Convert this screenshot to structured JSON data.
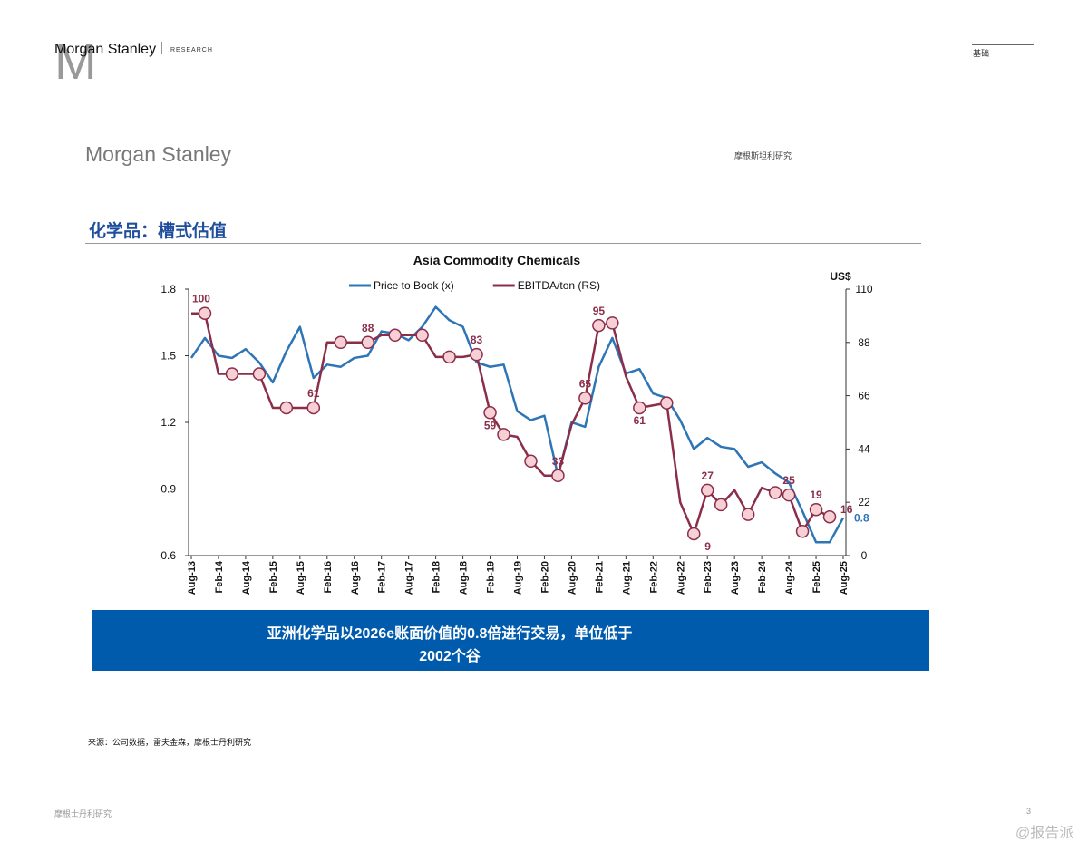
{
  "header": {
    "brand": "Morgan Stanley",
    "division": "RESEARCH",
    "logo_letter": "M",
    "tag": "基础",
    "brand_large": "Morgan Stanley",
    "brand_cn": "摩根斯坦利研究"
  },
  "section_title": "化学品：槽式估值",
  "callout": {
    "line1": "亚洲化学品以2026e账面价值的0.8倍进行交易，单位低于",
    "line2": "2002个谷"
  },
  "source": "来源：公司数据，雷夫金森，摩根士丹利研究",
  "footer": {
    "left": "摩根士丹利研究",
    "page": "3",
    "watermark": "@报告派"
  },
  "chart_data": {
    "type": "line",
    "title": "Asia Commodity Chemicals",
    "y2_label": "US$",
    "categories": [
      "Aug-13",
      null,
      "Feb-14",
      null,
      "Aug-14",
      null,
      "Feb-15",
      null,
      "Aug-15",
      null,
      "Feb-16",
      null,
      "Aug-16",
      null,
      "Feb-17",
      null,
      "Aug-17",
      null,
      "Feb-18",
      null,
      "Aug-18",
      null,
      "Feb-19",
      null,
      "Aug-19",
      null,
      "Feb-20",
      null,
      "Aug-20",
      null,
      "Feb-21",
      null,
      "Aug-21",
      null,
      "Feb-22",
      null,
      "Aug-22",
      null,
      "Feb-23",
      null,
      "Aug-23",
      null,
      "Feb-24",
      null,
      "Aug-24",
      null,
      "Feb-25",
      null,
      "Aug-25"
    ],
    "series": [
      {
        "name": "Price to Book (x)",
        "color": "#2e75b6",
        "axis": "y",
        "markers": false,
        "values": [
          1.49,
          1.58,
          1.5,
          1.49,
          1.53,
          1.47,
          1.38,
          1.52,
          1.63,
          1.4,
          1.46,
          1.45,
          1.49,
          1.5,
          1.61,
          1.6,
          1.57,
          1.63,
          1.72,
          1.66,
          1.63,
          1.47,
          1.45,
          1.46,
          1.25,
          1.21,
          1.23,
          0.96,
          1.2,
          1.18,
          1.45,
          1.58,
          1.42,
          1.44,
          1.33,
          1.31,
          1.21,
          1.08,
          1.13,
          1.09,
          1.08,
          1.0,
          1.02,
          0.97,
          0.93,
          0.8,
          0.66,
          0.66,
          0.77
        ],
        "value_labels": [
          null,
          null,
          null,
          null,
          null,
          null,
          null,
          null,
          null,
          null,
          null,
          null,
          null,
          null,
          null,
          null,
          null,
          null,
          null,
          null,
          null,
          null,
          null,
          null,
          null,
          null,
          null,
          null,
          null,
          null,
          null,
          null,
          null,
          null,
          null,
          null,
          null,
          null,
          null,
          null,
          null,
          null,
          null,
          null,
          null,
          null,
          null,
          null,
          "0.8"
        ]
      },
      {
        "name": "EBITDA/ton (RS)",
        "color": "#8b2e4a",
        "axis": "y2",
        "markers": true,
        "values": [
          100,
          100,
          75,
          75,
          75,
          75,
          61,
          61,
          61,
          61,
          88,
          88,
          88,
          88,
          91,
          91,
          91,
          91,
          82,
          82,
          82,
          83,
          59,
          50,
          49,
          39,
          33,
          33,
          54,
          65,
          95,
          96,
          74,
          61,
          62,
          63,
          22,
          9,
          27,
          21,
          27,
          17,
          28,
          26,
          25,
          10,
          19,
          16,
          null
        ],
        "value_labels": [
          null,
          "100",
          null,
          null,
          null,
          null,
          null,
          null,
          null,
          "61",
          null,
          null,
          null,
          "88",
          null,
          null,
          null,
          null,
          null,
          null,
          null,
          "83",
          "59",
          null,
          null,
          null,
          null,
          "33",
          null,
          "65",
          "95",
          null,
          null,
          "61",
          null,
          null,
          null,
          "9",
          "27",
          null,
          null,
          null,
          null,
          null,
          "25",
          null,
          "19",
          "16",
          null
        ]
      }
    ],
    "ylim": [
      0.6,
      1.8
    ],
    "yticks": [
      0.6,
      0.9,
      1.2,
      1.5,
      1.8
    ],
    "y2lim": [
      0,
      110
    ],
    "y2ticks": [
      0,
      22,
      44,
      66,
      88,
      110
    ],
    "legend": "top",
    "grid": false
  }
}
